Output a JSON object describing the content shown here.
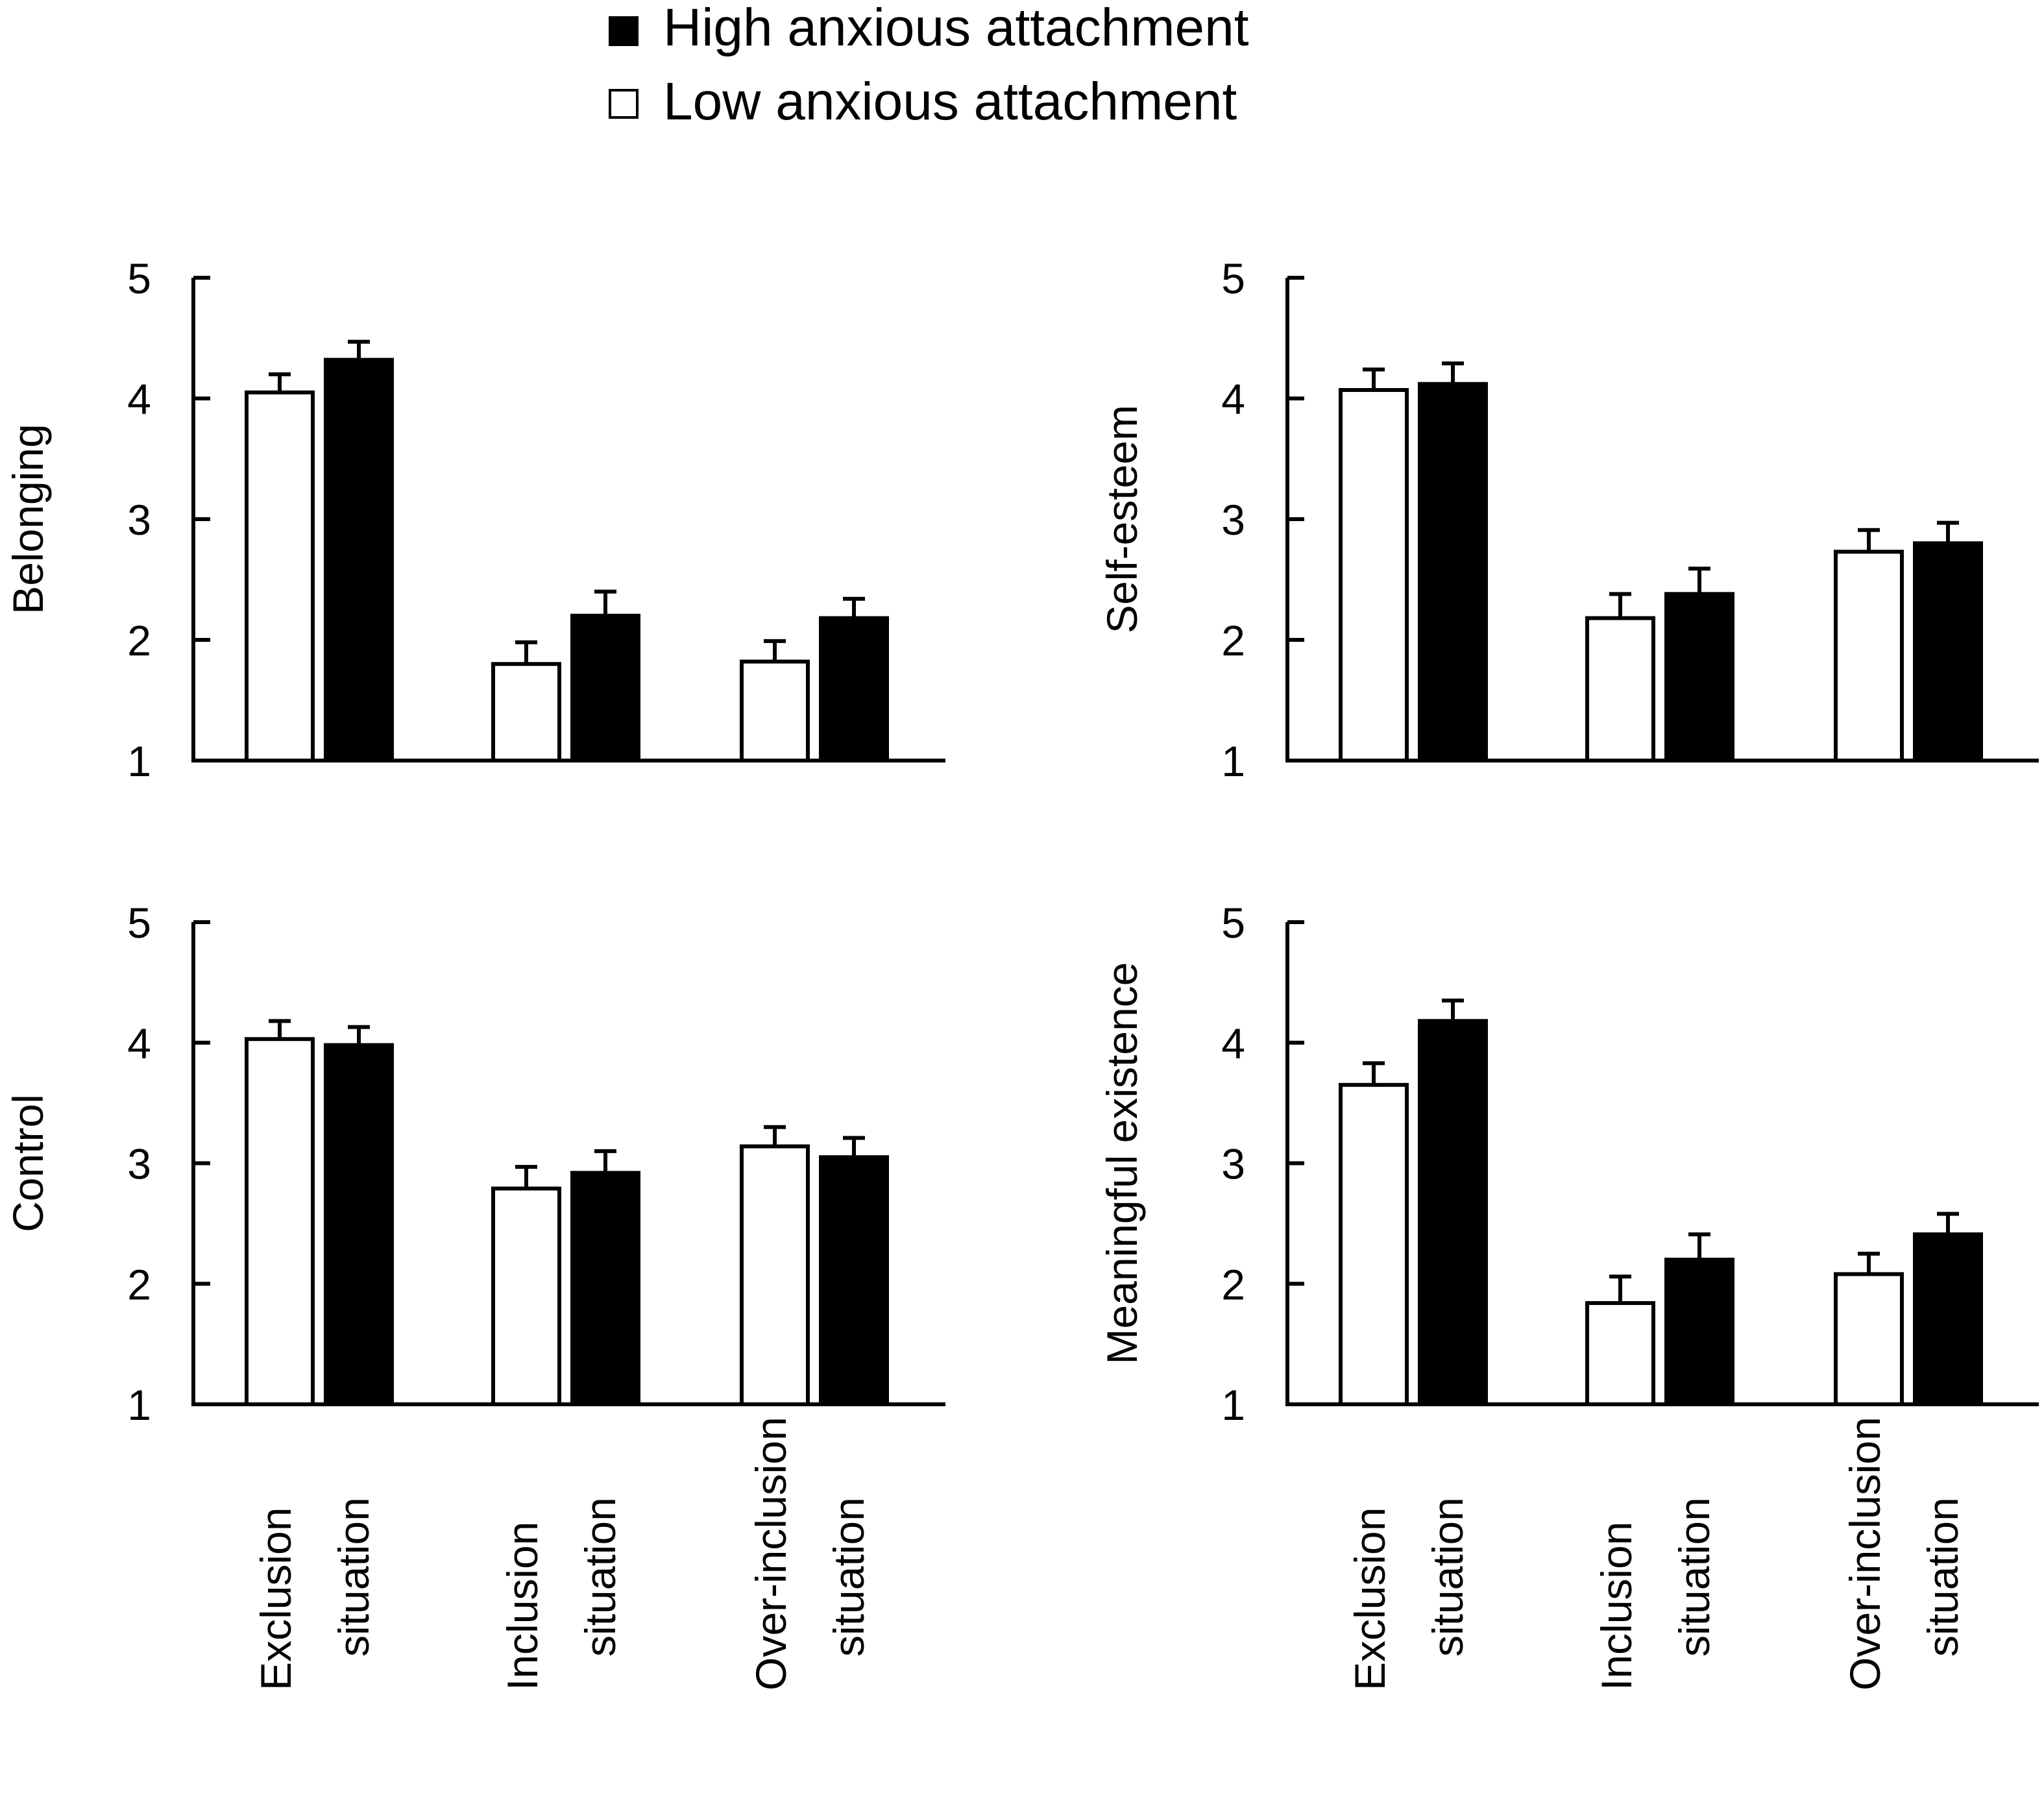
{
  "legend": {
    "high_label": "High anxious attachment",
    "low_label": "Low anxious attachment"
  },
  "colors": {
    "high": "#000000",
    "low": "#ffffff",
    "stroke": "#000000"
  },
  "chart_data": [
    {
      "type": "bar",
      "ylabel": "Belonging",
      "ylim": [
        1,
        5
      ],
      "yticks": [
        1,
        2,
        3,
        4,
        5
      ],
      "categories": [
        "Exclusion situation",
        "Inclusion situation",
        "Over-inclusion situation"
      ],
      "series": [
        {
          "name": "Low anxious attachment",
          "values": [
            4.05,
            1.8,
            1.82
          ],
          "errors": [
            0.15,
            0.18,
            0.17
          ]
        },
        {
          "name": "High anxious attachment",
          "values": [
            4.32,
            2.2,
            2.18
          ],
          "errors": [
            0.15,
            0.2,
            0.16
          ]
        }
      ]
    },
    {
      "type": "bar",
      "ylabel": "Self-esteem",
      "ylim": [
        1,
        5
      ],
      "yticks": [
        1,
        2,
        3,
        4,
        5
      ],
      "categories": [
        "Exclusion situation",
        "Inclusion situation",
        "Over-inclusion situation"
      ],
      "series": [
        {
          "name": "Low anxious attachment",
          "values": [
            4.07,
            2.18,
            2.73
          ],
          "errors": [
            0.17,
            0.2,
            0.18
          ]
        },
        {
          "name": "High anxious attachment",
          "values": [
            4.12,
            2.38,
            2.8
          ],
          "errors": [
            0.17,
            0.21,
            0.17
          ]
        }
      ]
    },
    {
      "type": "bar",
      "ylabel": "Control",
      "ylim": [
        1,
        5
      ],
      "yticks": [
        1,
        2,
        3,
        4,
        5
      ],
      "categories": [
        "Exclusion situation",
        "Inclusion situation",
        "Over-inclusion situation"
      ],
      "series": [
        {
          "name": "Low anxious attachment",
          "values": [
            4.03,
            2.79,
            3.14
          ],
          "errors": [
            0.15,
            0.18,
            0.16
          ]
        },
        {
          "name": "High anxious attachment",
          "values": [
            3.98,
            2.92,
            3.05
          ],
          "errors": [
            0.15,
            0.18,
            0.16
          ]
        }
      ]
    },
    {
      "type": "bar",
      "ylabel": "Meaningful existence",
      "ylim": [
        1,
        5
      ],
      "yticks": [
        1,
        2,
        3,
        4,
        5
      ],
      "categories": [
        "Exclusion situation",
        "Inclusion situation",
        "Over-inclusion situation"
      ],
      "series": [
        {
          "name": "Low anxious attachment",
          "values": [
            3.65,
            1.84,
            2.08
          ],
          "errors": [
            0.18,
            0.22,
            0.17
          ]
        },
        {
          "name": "High anxious attachment",
          "values": [
            4.18,
            2.2,
            2.41
          ],
          "errors": [
            0.17,
            0.21,
            0.17
          ]
        }
      ]
    }
  ]
}
